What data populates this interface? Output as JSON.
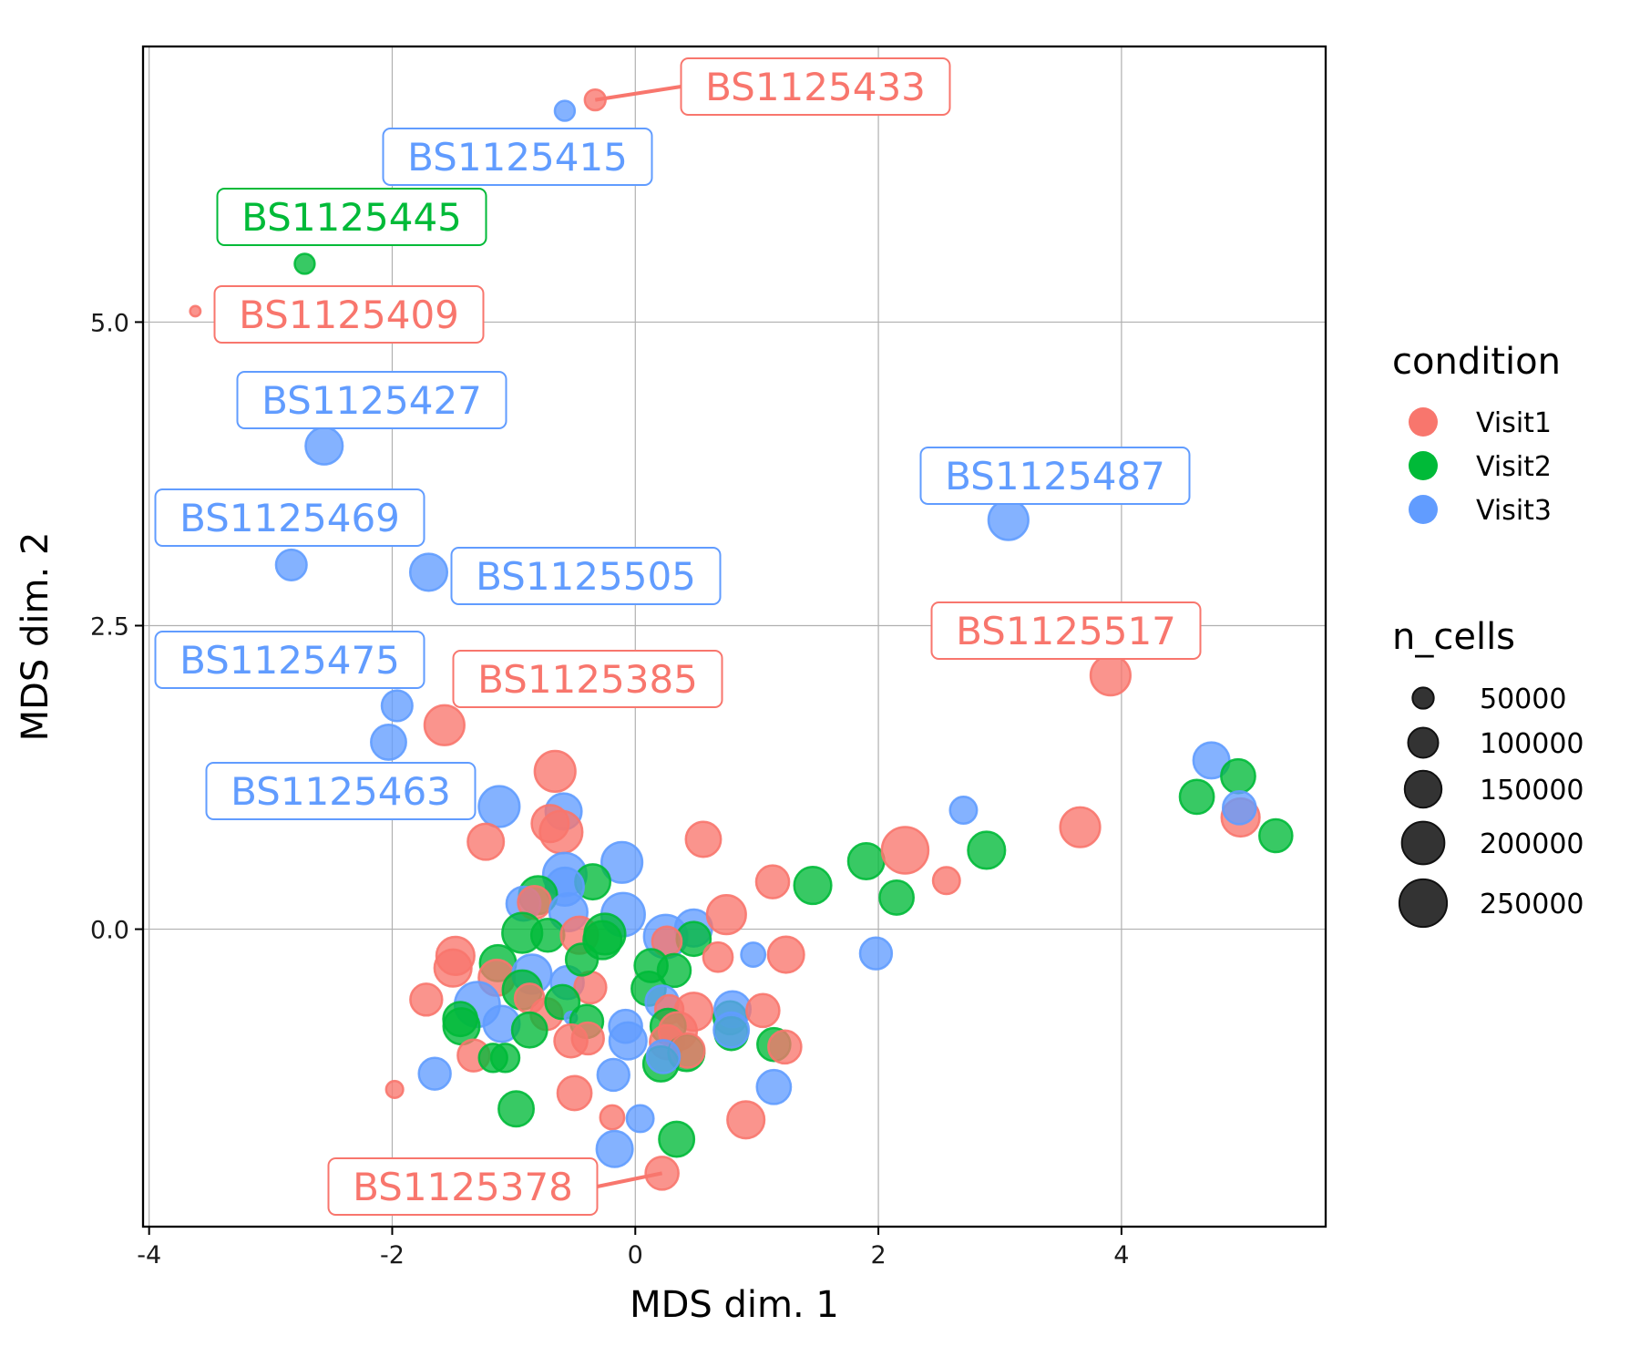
{
  "chart_data": {
    "type": "scatter",
    "title": "",
    "xlabel": "MDS dim. 1",
    "ylabel": "MDS dim. 2",
    "xlim": [
      -4.05,
      5.68
    ],
    "ylim": [
      -2.45,
      7.27
    ],
    "x_ticks": [
      -4,
      -2,
      0,
      2,
      4
    ],
    "x_tick_labels": [
      "-4",
      "-2",
      "0",
      "2",
      "4"
    ],
    "y_ticks": [
      0,
      2.5,
      5
    ],
    "y_tick_labels": [
      "0.0",
      "2.5",
      "5.0"
    ],
    "grid": true,
    "colors": {
      "Visit1": "#F8766D",
      "Visit2": "#00BA38",
      "Visit3": "#619CFF"
    },
    "legend": {
      "position": "right",
      "color_title": "condition",
      "color_entries": [
        "Visit1",
        "Visit2",
        "Visit3"
      ],
      "size_title": "n_cells",
      "size_entries": [
        50000,
        100000,
        150000,
        200000,
        250000
      ],
      "size_labels": [
        "50000",
        "100000",
        "150000",
        "200000",
        "250000"
      ]
    },
    "points": [
      {
        "x": -0.33,
        "y": 6.83,
        "condition": "Visit1",
        "n_cells": 60000,
        "label": "BS1125433"
      },
      {
        "x": -0.58,
        "y": 6.74,
        "condition": "Visit3",
        "n_cells": 55000,
        "label": "BS1125415"
      },
      {
        "x": -2.72,
        "y": 5.48,
        "condition": "Visit2",
        "n_cells": 55000,
        "label": "BS1125445"
      },
      {
        "x": -3.62,
        "y": 5.09,
        "condition": "Visit1",
        "n_cells": 15000,
        "label": "BS1125409"
      },
      {
        "x": -2.56,
        "y": 3.98,
        "condition": "Visit3",
        "n_cells": 190000,
        "label": "BS1125427"
      },
      {
        "x": -2.83,
        "y": 3.0,
        "condition": "Visit3",
        "n_cells": 130000,
        "label": "BS1125469"
      },
      {
        "x": -1.7,
        "y": 2.94,
        "condition": "Visit3",
        "n_cells": 190000,
        "label": "BS1125505"
      },
      {
        "x": -1.96,
        "y": 1.84,
        "condition": "Visit3",
        "n_cells": 130000,
        "label": "BS1125475"
      },
      {
        "x": -2.03,
        "y": 1.54,
        "condition": "Visit3",
        "n_cells": 170000,
        "label": "BS1125463"
      },
      {
        "x": -1.57,
        "y": 1.68,
        "condition": "Visit1",
        "n_cells": 220000,
        "label": "BS1125385"
      },
      {
        "x": 3.07,
        "y": 3.37,
        "condition": "Visit3",
        "n_cells": 220000,
        "label": "BS1125487"
      },
      {
        "x": 3.91,
        "y": 2.09,
        "condition": "Visit1",
        "n_cells": 220000,
        "label": "BS1125517"
      },
      {
        "x": 0.22,
        "y": -2.01,
        "condition": "Visit1",
        "n_cells": 150000,
        "label": "BS1125378"
      },
      {
        "x": -0.66,
        "y": 1.3,
        "condition": "Visit1",
        "n_cells": 230000
      },
      {
        "x": -0.59,
        "y": 0.97,
        "condition": "Visit3",
        "n_cells": 180000
      },
      {
        "x": -0.7,
        "y": 0.87,
        "condition": "Visit1",
        "n_cells": 190000
      },
      {
        "x": -0.61,
        "y": 0.8,
        "condition": "Visit1",
        "n_cells": 250000
      },
      {
        "x": -1.12,
        "y": 1.01,
        "condition": "Visit3",
        "n_cells": 230000
      },
      {
        "x": -1.23,
        "y": 0.72,
        "condition": "Visit1",
        "n_cells": 180000
      },
      {
        "x": 0.56,
        "y": 0.74,
        "condition": "Visit1",
        "n_cells": 170000
      },
      {
        "x": -0.11,
        "y": 0.55,
        "condition": "Visit3",
        "n_cells": 230000
      },
      {
        "x": -0.58,
        "y": 0.45,
        "condition": "Visit3",
        "n_cells": 260000
      },
      {
        "x": -0.35,
        "y": 0.39,
        "condition": "Visit2",
        "n_cells": 170000
      },
      {
        "x": -0.58,
        "y": 0.35,
        "condition": "Visit3",
        "n_cells": 200000
      },
      {
        "x": -0.8,
        "y": 0.28,
        "condition": "Visit2",
        "n_cells": 200000
      },
      {
        "x": -0.92,
        "y": 0.21,
        "condition": "Visit3",
        "n_cells": 160000
      },
      {
        "x": -0.83,
        "y": 0.22,
        "condition": "Visit1",
        "n_cells": 150000
      },
      {
        "x": -0.1,
        "y": 0.12,
        "condition": "Visit3",
        "n_cells": 260000
      },
      {
        "x": -0.55,
        "y": 0.14,
        "condition": "Visit3",
        "n_cells": 200000
      },
      {
        "x": -0.93,
        "y": -0.03,
        "condition": "Visit2",
        "n_cells": 220000
      },
      {
        "x": -0.72,
        "y": -0.05,
        "condition": "Visit2",
        "n_cells": 150000
      },
      {
        "x": -0.46,
        "y": -0.05,
        "condition": "Visit1",
        "n_cells": 190000
      },
      {
        "x": -0.25,
        "y": -0.04,
        "condition": "Visit2",
        "n_cells": 230000
      },
      {
        "x": -0.27,
        "y": -0.09,
        "condition": "Visit2",
        "n_cells": 200000
      },
      {
        "x": 0.25,
        "y": -0.06,
        "condition": "Visit3",
        "n_cells": 260000
      },
      {
        "x": 0.48,
        "y": 0.01,
        "condition": "Visit3",
        "n_cells": 190000
      },
      {
        "x": 0.48,
        "y": -0.08,
        "condition": "Visit2",
        "n_cells": 160000
      },
      {
        "x": 0.26,
        "y": -0.1,
        "condition": "Visit1",
        "n_cells": 120000
      },
      {
        "x": 0.75,
        "y": 0.12,
        "condition": "Visit1",
        "n_cells": 210000
      },
      {
        "x": 0.68,
        "y": -0.23,
        "condition": "Visit1",
        "n_cells": 120000
      },
      {
        "x": 1.13,
        "y": 0.39,
        "condition": "Visit1",
        "n_cells": 150000
      },
      {
        "x": 1.46,
        "y": 0.36,
        "condition": "Visit2",
        "n_cells": 190000
      },
      {
        "x": 1.24,
        "y": -0.21,
        "condition": "Visit1",
        "n_cells": 180000
      },
      {
        "x": 0.97,
        "y": -0.21,
        "condition": "Visit3",
        "n_cells": 80000
      },
      {
        "x": 1.9,
        "y": 0.56,
        "condition": "Visit2",
        "n_cells": 180000
      },
      {
        "x": 2.22,
        "y": 0.65,
        "condition": "Visit1",
        "n_cells": 300000
      },
      {
        "x": 2.15,
        "y": 0.26,
        "condition": "Visit2",
        "n_cells": 160000
      },
      {
        "x": 1.98,
        "y": -0.2,
        "condition": "Visit3",
        "n_cells": 140000
      },
      {
        "x": 2.56,
        "y": 0.4,
        "condition": "Visit1",
        "n_cells": 100000
      },
      {
        "x": 2.7,
        "y": 0.98,
        "condition": "Visit3",
        "n_cells": 100000
      },
      {
        "x": 2.89,
        "y": 0.65,
        "condition": "Visit2",
        "n_cells": 190000
      },
      {
        "x": 3.66,
        "y": 0.84,
        "condition": "Visit1",
        "n_cells": 220000
      },
      {
        "x": 4.62,
        "y": 1.09,
        "condition": "Visit2",
        "n_cells": 160000
      },
      {
        "x": 4.74,
        "y": 1.39,
        "condition": "Visit3",
        "n_cells": 180000
      },
      {
        "x": 4.96,
        "y": 1.26,
        "condition": "Visit2",
        "n_cells": 160000
      },
      {
        "x": 4.98,
        "y": 0.92,
        "condition": "Visit1",
        "n_cells": 200000
      },
      {
        "x": 4.97,
        "y": 1.0,
        "condition": "Visit3",
        "n_cells": 150000
      },
      {
        "x": 5.27,
        "y": 0.77,
        "condition": "Visit2",
        "n_cells": 150000
      },
      {
        "x": -1.48,
        "y": -0.22,
        "condition": "Visit1",
        "n_cells": 200000
      },
      {
        "x": -1.5,
        "y": -0.32,
        "condition": "Visit1",
        "n_cells": 190000
      },
      {
        "x": -1.72,
        "y": -0.58,
        "condition": "Visit1",
        "n_cells": 140000
      },
      {
        "x": -1.13,
        "y": -0.28,
        "condition": "Visit2",
        "n_cells": 180000
      },
      {
        "x": -1.14,
        "y": -0.4,
        "condition": "Visit1",
        "n_cells": 180000
      },
      {
        "x": -0.85,
        "y": -0.37,
        "condition": "Visit3",
        "n_cells": 210000
      },
      {
        "x": -0.93,
        "y": -0.5,
        "condition": "Visit2",
        "n_cells": 210000
      },
      {
        "x": -0.56,
        "y": -0.44,
        "condition": "Visit3",
        "n_cells": 150000
      },
      {
        "x": -0.37,
        "y": -0.48,
        "condition": "Visit1",
        "n_cells": 140000
      },
      {
        "x": -0.44,
        "y": -0.25,
        "condition": "Visit2",
        "n_cells": 140000
      },
      {
        "x": -1.3,
        "y": -0.62,
        "condition": "Visit3",
        "n_cells": 280000
      },
      {
        "x": -0.87,
        "y": -0.57,
        "condition": "Visit1",
        "n_cells": 120000
      },
      {
        "x": -0.73,
        "y": -0.7,
        "condition": "Visit1",
        "n_cells": 140000
      },
      {
        "x": -0.6,
        "y": -0.6,
        "condition": "Visit2",
        "n_cells": 160000
      },
      {
        "x": -0.53,
        "y": -0.73,
        "condition": "Visit3",
        "n_cells": 20000
      },
      {
        "x": -0.4,
        "y": -0.76,
        "condition": "Visit2",
        "n_cells": 150000
      },
      {
        "x": -1.44,
        "y": -0.74,
        "condition": "Visit2",
        "n_cells": 160000
      },
      {
        "x": -1.43,
        "y": -0.8,
        "condition": "Visit2",
        "n_cells": 180000
      },
      {
        "x": -1.1,
        "y": -0.78,
        "condition": "Visit3",
        "n_cells": 180000
      },
      {
        "x": -0.87,
        "y": -0.83,
        "condition": "Visit2",
        "n_cells": 170000
      },
      {
        "x": -1.33,
        "y": -1.04,
        "condition": "Visit1",
        "n_cells": 140000
      },
      {
        "x": -1.17,
        "y": -1.06,
        "condition": "Visit2",
        "n_cells": 110000
      },
      {
        "x": -1.07,
        "y": -1.06,
        "condition": "Visit2",
        "n_cells": 110000
      },
      {
        "x": -0.53,
        "y": -0.92,
        "condition": "Visit1",
        "n_cells": 150000
      },
      {
        "x": -0.39,
        "y": -0.9,
        "condition": "Visit1",
        "n_cells": 140000
      },
      {
        "x": -0.08,
        "y": -0.8,
        "condition": "Visit3",
        "n_cells": 150000
      },
      {
        "x": -0.06,
        "y": -0.92,
        "condition": "Visit3",
        "n_cells": 190000
      },
      {
        "x": 0.13,
        "y": -0.3,
        "condition": "Visit2",
        "n_cells": 150000
      },
      {
        "x": 0.11,
        "y": -0.49,
        "condition": "Visit2",
        "n_cells": 160000
      },
      {
        "x": 0.32,
        "y": -0.34,
        "condition": "Visit2",
        "n_cells": 150000
      },
      {
        "x": 0.22,
        "y": -0.6,
        "condition": "Visit3",
        "n_cells": 150000
      },
      {
        "x": 0.28,
        "y": -0.66,
        "condition": "Visit1",
        "n_cells": 110000
      },
      {
        "x": 0.48,
        "y": -0.68,
        "condition": "Visit1",
        "n_cells": 200000
      },
      {
        "x": 0.27,
        "y": -0.8,
        "condition": "Visit2",
        "n_cells": 170000
      },
      {
        "x": 0.35,
        "y": -0.84,
        "condition": "Visit1",
        "n_cells": 200000
      },
      {
        "x": 0.26,
        "y": -0.93,
        "condition": "Visit1",
        "n_cells": 160000
      },
      {
        "x": 0.42,
        "y": -1.02,
        "condition": "Visit2",
        "n_cells": 180000
      },
      {
        "x": 0.43,
        "y": -1.0,
        "condition": "Visit1",
        "n_cells": 160000
      },
      {
        "x": 0.21,
        "y": -1.11,
        "condition": "Visit2",
        "n_cells": 170000
      },
      {
        "x": 0.23,
        "y": -1.05,
        "condition": "Visit3",
        "n_cells": 150000
      },
      {
        "x": 0.78,
        "y": -0.73,
        "condition": "Visit2",
        "n_cells": 150000
      },
      {
        "x": 0.8,
        "y": -0.66,
        "condition": "Visit3",
        "n_cells": 180000
      },
      {
        "x": 0.79,
        "y": -0.86,
        "condition": "Visit2",
        "n_cells": 150000
      },
      {
        "x": 0.79,
        "y": -0.83,
        "condition": "Visit3",
        "n_cells": 170000
      },
      {
        "x": 1.05,
        "y": -0.67,
        "condition": "Visit1",
        "n_cells": 150000
      },
      {
        "x": 1.14,
        "y": -0.95,
        "condition": "Visit2",
        "n_cells": 150000
      },
      {
        "x": 1.23,
        "y": -0.97,
        "condition": "Visit1",
        "n_cells": 150000
      },
      {
        "x": 1.14,
        "y": -1.3,
        "condition": "Visit3",
        "n_cells": 160000
      },
      {
        "x": -1.98,
        "y": -1.32,
        "condition": "Visit1",
        "n_cells": 40000
      },
      {
        "x": -1.65,
        "y": -1.19,
        "condition": "Visit3",
        "n_cells": 140000
      },
      {
        "x": -0.98,
        "y": -1.48,
        "condition": "Visit2",
        "n_cells": 170000
      },
      {
        "x": -0.5,
        "y": -1.35,
        "condition": "Visit1",
        "n_cells": 160000
      },
      {
        "x": -0.18,
        "y": -1.2,
        "condition": "Visit3",
        "n_cells": 140000
      },
      {
        "x": -0.19,
        "y": -1.55,
        "condition": "Visit1",
        "n_cells": 80000
      },
      {
        "x": 0.04,
        "y": -1.56,
        "condition": "Visit3",
        "n_cells": 100000
      },
      {
        "x": -0.17,
        "y": -1.81,
        "condition": "Visit3",
        "n_cells": 180000
      },
      {
        "x": 0.34,
        "y": -1.73,
        "condition": "Visit2",
        "n_cells": 170000
      },
      {
        "x": 0.91,
        "y": -1.57,
        "condition": "Visit1",
        "n_cells": 190000
      }
    ]
  }
}
